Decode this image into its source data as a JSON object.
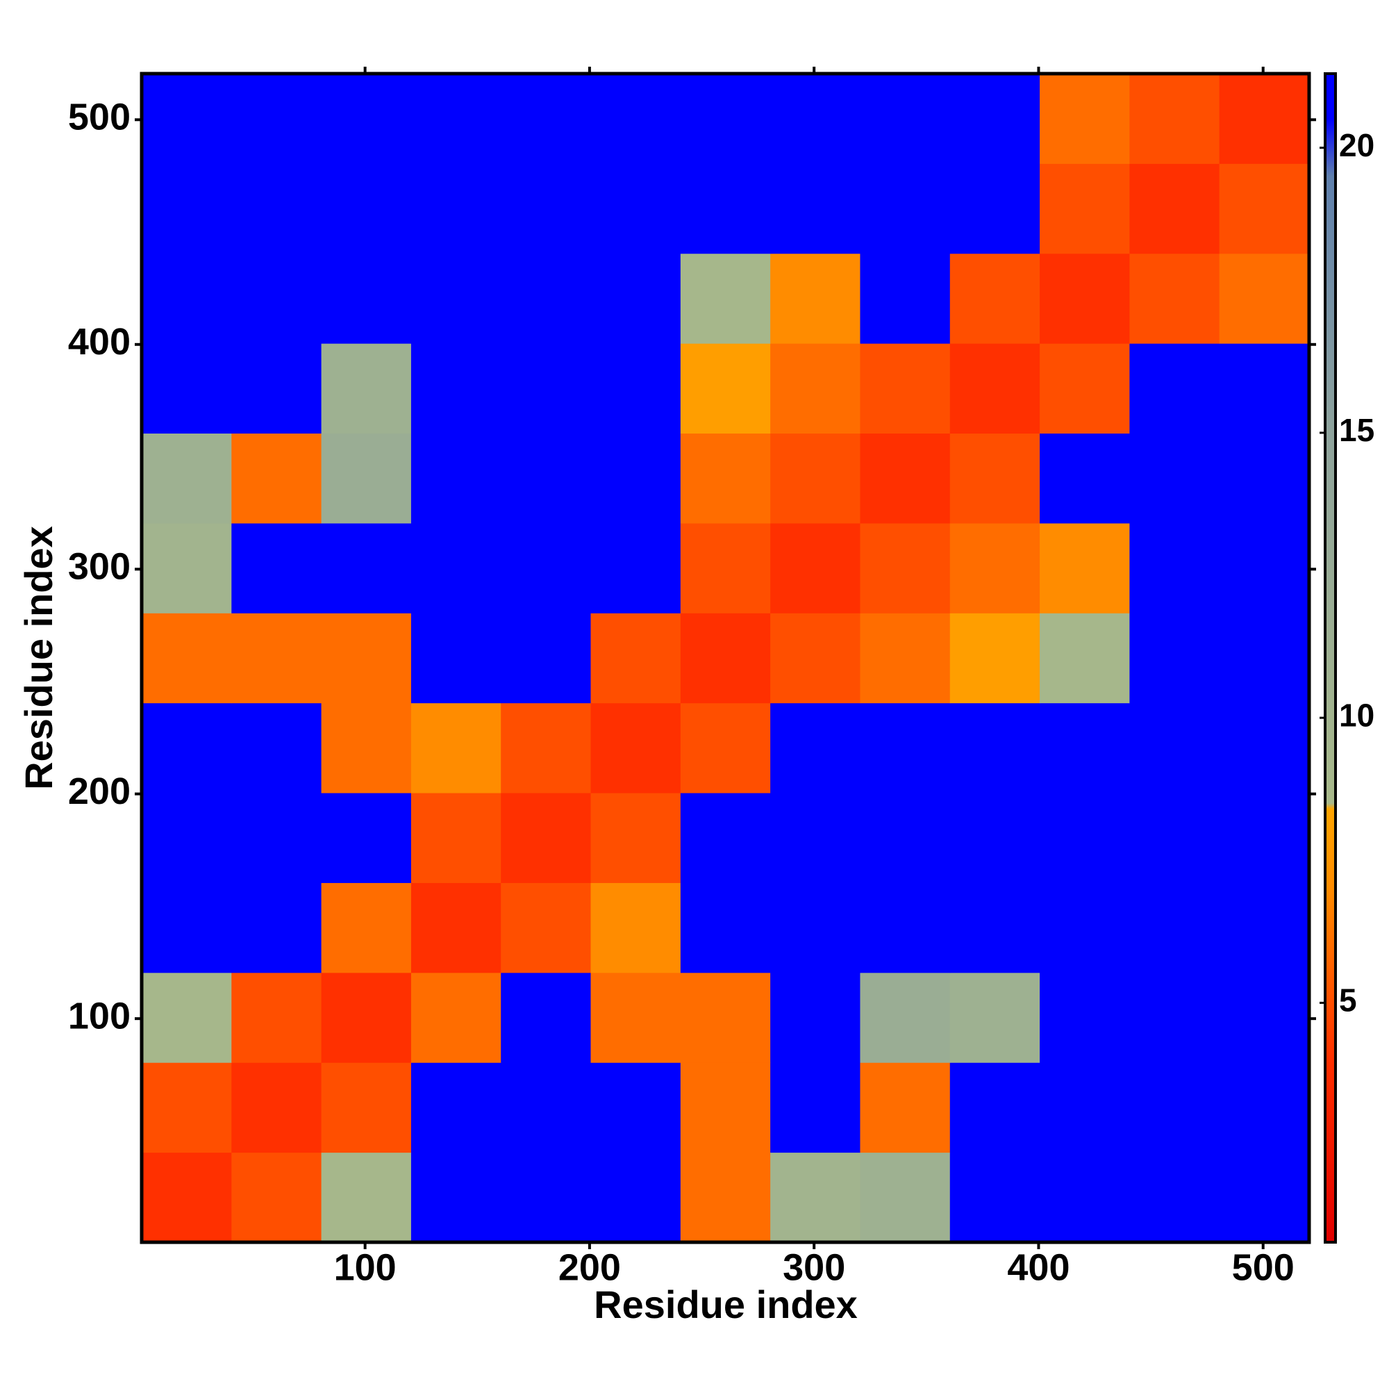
{
  "chart_data": {
    "type": "heatmap",
    "xlabel": "Residue index",
    "ylabel": "Residue index",
    "x_edges": [
      0.5,
      40.5,
      80.5,
      120.5,
      160.5,
      200.5,
      240.5,
      280.5,
      320.5,
      360.5,
      400.5,
      440.5,
      480.5,
      520.5
    ],
    "y_edges": [
      0.5,
      40.5,
      80.5,
      120.5,
      160.5,
      200.5,
      240.5,
      280.5,
      320.5,
      360.5,
      400.5,
      440.5,
      480.5,
      520.5
    ],
    "z": [
      [
        4,
        5,
        9,
        21,
        21,
        21,
        6,
        10,
        11,
        21,
        21,
        21,
        21
      ],
      [
        5,
        4,
        5,
        21,
        21,
        21,
        6,
        21,
        6,
        21,
        21,
        21,
        21
      ],
      [
        9,
        5,
        4,
        6,
        21,
        6,
        6,
        21,
        12,
        11,
        21,
        21,
        21
      ],
      [
        21,
        21,
        6,
        4,
        5,
        7,
        21,
        21,
        21,
        21,
        21,
        21,
        21
      ],
      [
        21,
        21,
        21,
        5,
        4,
        5,
        21,
        21,
        21,
        21,
        21,
        21,
        21
      ],
      [
        21,
        21,
        6,
        7,
        5,
        4,
        5,
        21,
        21,
        21,
        21,
        21,
        21
      ],
      [
        6,
        6,
        6,
        21,
        21,
        5,
        4,
        5,
        6,
        8,
        9,
        21,
        21
      ],
      [
        10,
        21,
        21,
        21,
        21,
        21,
        5,
        4,
        5,
        6,
        7,
        21,
        21
      ],
      [
        11,
        6,
        12,
        21,
        21,
        21,
        6,
        5,
        4,
        5,
        21,
        21,
        21
      ],
      [
        21,
        21,
        11,
        21,
        21,
        21,
        8,
        6,
        5,
        4,
        5,
        21,
        21
      ],
      [
        21,
        21,
        21,
        21,
        21,
        21,
        9,
        7,
        21,
        5,
        4,
        5,
        6
      ],
      [
        21,
        21,
        21,
        21,
        21,
        21,
        21,
        21,
        21,
        21,
        5,
        4,
        5
      ],
      [
        21,
        21,
        21,
        21,
        21,
        21,
        21,
        21,
        21,
        21,
        6,
        5,
        4
      ]
    ],
    "xlim": [
      0.5,
      520.5
    ],
    "ylim": [
      0.5,
      520.5
    ],
    "xticks": [
      100,
      200,
      300,
      400,
      500
    ],
    "yticks": [
      100,
      200,
      300,
      400,
      500
    ],
    "colorbar": {
      "lim": [
        0.8,
        21.3
      ],
      "ticks": [
        5,
        10,
        15,
        20
      ],
      "stops": [
        {
          "value": 0.8,
          "color": "#e00000"
        },
        {
          "value": 4,
          "color": "#ff3000"
        },
        {
          "value": 7,
          "color": "#ff8c00"
        },
        {
          "value": 8.4,
          "color": "#ffa500"
        },
        {
          "value": 8.5,
          "color": "#a8b98a"
        },
        {
          "value": 15,
          "color": "#8ea39c"
        },
        {
          "value": 19.5,
          "color": "#5f80ad"
        },
        {
          "value": 20.5,
          "color": "#0000ff"
        },
        {
          "value": 21.3,
          "color": "#0000ff"
        }
      ]
    }
  }
}
